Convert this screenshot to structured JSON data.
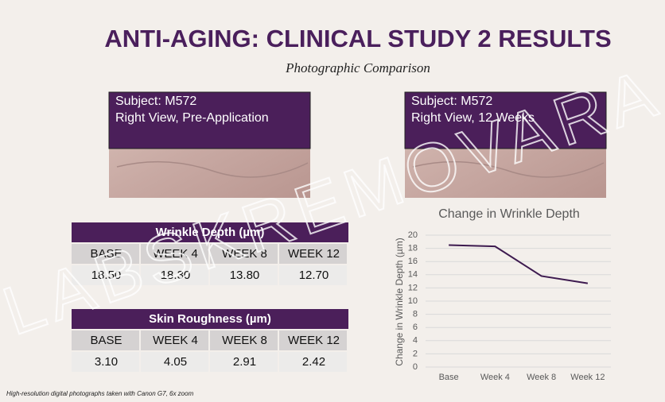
{
  "title": "ANTI-AGING: CLINICAL STUDY 2 RESULTS",
  "subtitle": "Photographic Comparison",
  "watermark": "LABSKREMOVARA",
  "photos": [
    {
      "lines": [
        "Subject: M572",
        "Right View, Pre-Application"
      ]
    },
    {
      "lines": [
        "Subject: M572",
        "Right View, 12 Weeks"
      ]
    }
  ],
  "tables": [
    {
      "title": "Wrinkle Depth (µm)",
      "header": [
        "BASE",
        "WEEK 4",
        "WEEK 8",
        "WEEK 12"
      ],
      "rows": [
        [
          "18.50",
          "18.30",
          "13.80",
          "12.70"
        ]
      ]
    },
    {
      "title": "Skin Roughness (µm)",
      "header": [
        "BASE",
        "WEEK 4",
        "WEEK 8",
        "WEEK 12"
      ],
      "rows": [
        [
          "3.10",
          "4.05",
          "2.91",
          "2.42"
        ]
      ]
    }
  ],
  "chart_data": {
    "type": "line",
    "title": "Change in Wrinkle Depth",
    "y_label": "Change in Wrinkle Depth (µm)",
    "categories": [
      "Base",
      "Week 4",
      "Week 8",
      "Week 12"
    ],
    "values": [
      18.5,
      18.3,
      13.8,
      12.7
    ],
    "color": "#3d1a4f",
    "ylim": [
      0,
      20
    ],
    "yticks": [
      0,
      2,
      4,
      6,
      8,
      10,
      12,
      14,
      16,
      18,
      20
    ],
    "grid": true
  },
  "footnote": "High-resolution digital photographs taken with Canon G7, 6x zoom"
}
